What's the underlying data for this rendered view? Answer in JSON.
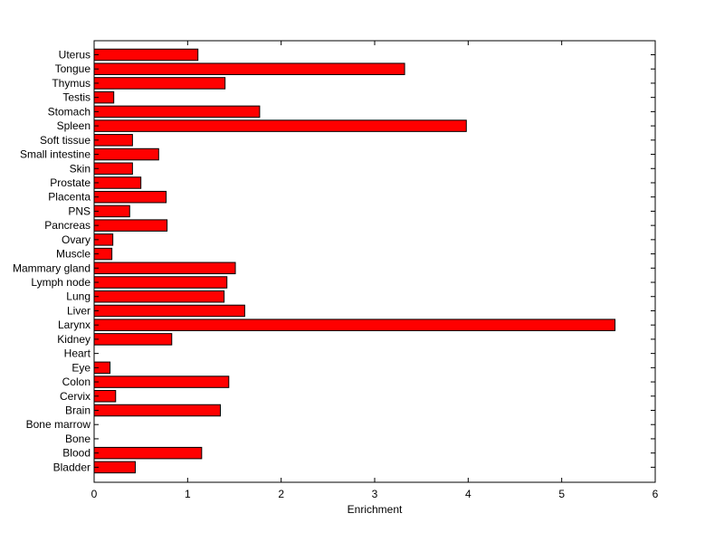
{
  "chart_data": {
    "type": "bar",
    "orientation": "horizontal",
    "title": "",
    "xlabel": "Enrichment",
    "ylabel": "",
    "xlim": [
      0,
      6
    ],
    "xticks": [
      0,
      1,
      2,
      3,
      4,
      5,
      6
    ],
    "grid": false,
    "legend": "none",
    "bar_color": "#ff0000",
    "categories": [
      "Uterus",
      "Tongue",
      "Thymus",
      "Testis",
      "Stomach",
      "Spleen",
      "Soft tissue",
      "Small intestine",
      "Skin",
      "Prostate",
      "Placenta",
      "PNS",
      "Pancreas",
      "Ovary",
      "Muscle",
      "Mammary gland",
      "Lymph node",
      "Lung",
      "Liver",
      "Larynx",
      "Kidney",
      "Heart",
      "Eye",
      "Colon",
      "Cervix",
      "Brain",
      "Bone marrow",
      "Bone",
      "Blood",
      "Bladder"
    ],
    "values": [
      1.11,
      3.32,
      1.4,
      0.21,
      1.77,
      3.98,
      0.41,
      0.69,
      0.41,
      0.5,
      0.77,
      0.38,
      0.78,
      0.2,
      0.19,
      1.51,
      1.42,
      1.39,
      1.61,
      5.57,
      0.83,
      0.0,
      0.17,
      1.44,
      0.23,
      1.35,
      0.0,
      0.0,
      1.15,
      0.44
    ]
  }
}
